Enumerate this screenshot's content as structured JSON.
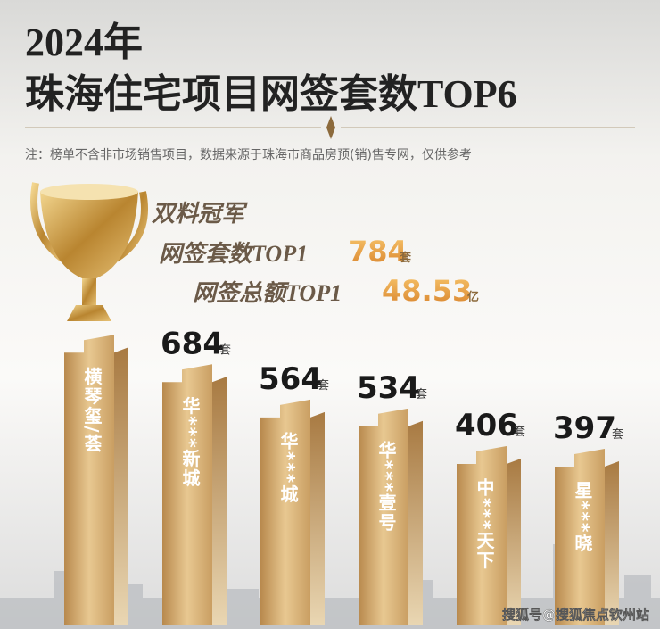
{
  "chart_data": {
    "type": "bar",
    "title": "2024年",
    "subtitle": "珠海住宅项目网签套数TOP6",
    "note": "注：榜单不含非市场销售项目，数据来源于珠海市商品房预(销)售专网，仅供参考",
    "champion_title": "双料冠军",
    "champion_count_label": "网签套数TOP1",
    "champion_amount_label": "网签总额TOP1",
    "champion_amount": 48.53,
    "amount_unit": "亿",
    "unit": "套",
    "categories": [
      "横琴玺/荟",
      "华***新城",
      "华***城",
      "华***壹号",
      "中***天下",
      "星***晓"
    ],
    "values": [
      784,
      684,
      564,
      534,
      406,
      397
    ],
    "color": "#c9a46a",
    "watermark": "搜狐号@搜狐焦点钦州站"
  }
}
